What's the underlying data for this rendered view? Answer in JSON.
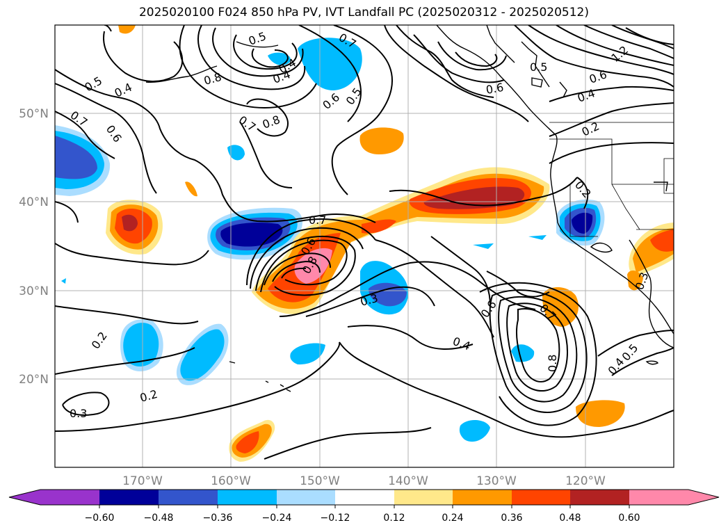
{
  "title": "2025020100 F024 850 hPa PV, IVT Landfall PC (2025020312 - 2025020512)",
  "map": {
    "lat_labels": [
      "50°N",
      "40°N",
      "30°N",
      "20°N"
    ],
    "lon_labels": [
      "170°W",
      "160°W",
      "150°W",
      "140°W",
      "130°W",
      "120°W"
    ],
    "contour_labels": [
      "0.4",
      "0.5",
      "0.6",
      "0.7",
      "0.8",
      "0.2",
      "0.3",
      "1.2",
      "0.5",
      "0.4",
      "0.6",
      "0.6",
      "0.5",
      "0.4",
      "0.2",
      "0.7",
      "0.8",
      "0.5",
      "0.4",
      "0.7",
      "0.6",
      "0.7",
      "0.3",
      "0.6",
      "0.4",
      "0.7",
      "0.8",
      "0.2",
      "0.2",
      "0.3",
      "0.4",
      "0.5",
      "0.8",
      "0.6"
    ]
  },
  "colorbar": {
    "ticks": [
      "−0.60",
      "−0.48",
      "−0.36",
      "−0.24",
      "−0.12",
      "0.12",
      "0.24",
      "0.36",
      "0.48",
      "0.60"
    ],
    "colors": {
      "below": "#9933cc",
      "b1": "#000099",
      "b2": "#3355cc",
      "b3": "#00bbff",
      "b4": "#aaddff",
      "neutral": "#ffffff",
      "r1": "#ffe88a",
      "r2": "#ff9900",
      "r3": "#ff4400",
      "r4": "#b22222",
      "above": "#ff88aa"
    }
  }
}
